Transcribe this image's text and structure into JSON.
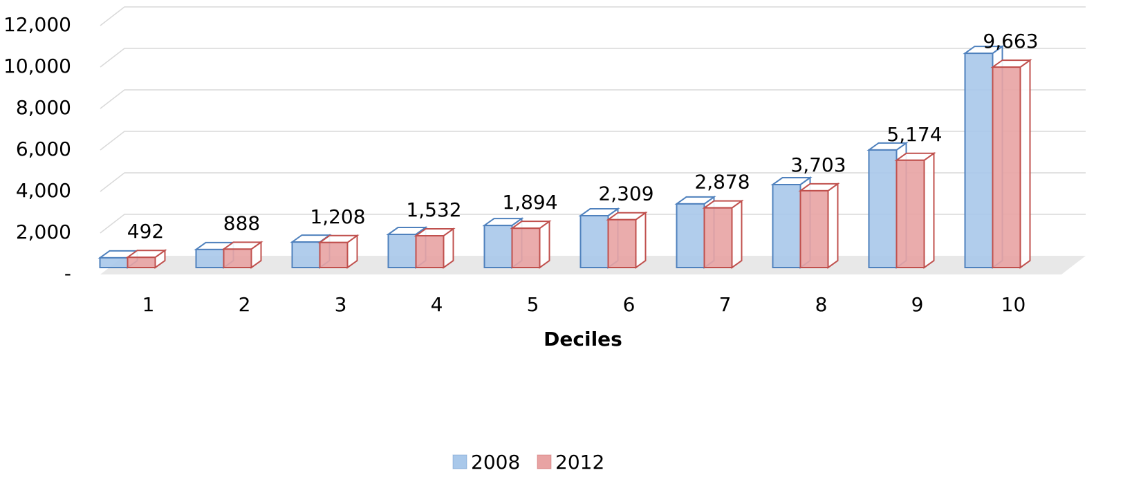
{
  "chart_data": {
    "type": "bar3d",
    "x_label": "Deciles",
    "categories": [
      "1",
      "2",
      "3",
      "4",
      "5",
      "6",
      "7",
      "8",
      "9",
      "10"
    ],
    "series": [
      {
        "name": "2008",
        "color": "#a9c8ea",
        "edge": "#4f81bd",
        "values": [
          470,
          870,
          1230,
          1600,
          2030,
          2500,
          3070,
          4000,
          5670,
          10330
        ]
      },
      {
        "name": "2012",
        "color": "#e8a3a3",
        "edge": "#c0504d",
        "values": [
          492,
          888,
          1208,
          1532,
          1894,
          2309,
          2878,
          3703,
          5174,
          9663
        ],
        "value_labels": [
          "492",
          "888",
          "1,208",
          "1,532",
          "1,894",
          "2,309",
          "2,878",
          "3,703",
          "5,174",
          "9,663"
        ]
      }
    ],
    "ylim": [
      0,
      12000
    ],
    "yticks": [
      {
        "value": 0,
        "label": "-"
      },
      {
        "value": 2000,
        "label": "2,000"
      },
      {
        "value": 4000,
        "label": "4,000"
      },
      {
        "value": 6000,
        "label": "6,000"
      },
      {
        "value": 8000,
        "label": "8,000"
      },
      {
        "value": 10000,
        "label": "10,000"
      },
      {
        "value": 12000,
        "label": "12,000"
      }
    ],
    "grid": true,
    "legend": "bottom"
  }
}
